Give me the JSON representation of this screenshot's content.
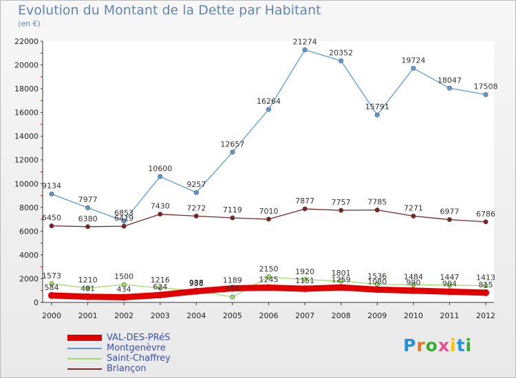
{
  "header": {
    "title": "Evolution du Montant de la Dette par Habitant",
    "subtitle": "(en €)"
  },
  "logo": {
    "letters": [
      "P",
      "r",
      "o",
      "x",
      "i",
      "t",
      "i"
    ],
    "colors": [
      "#2a8fd6",
      "#e2761d",
      "#3aaa35",
      "#e84d93",
      "#f5c400",
      "#2a8fd6",
      "#3aaa35"
    ]
  },
  "chart_data": {
    "type": "line",
    "title": "Evolution du Montant de la Dette par Habitant",
    "subtitle": "(en €)",
    "xlabel": "",
    "ylabel": "",
    "x": [
      2000,
      2001,
      2002,
      2003,
      2004,
      2005,
      2006,
      2007,
      2008,
      2009,
      2010,
      2011,
      2012
    ],
    "ylim": [
      0,
      22000
    ],
    "yticks": [
      0,
      2000,
      4000,
      6000,
      8000,
      10000,
      12000,
      14000,
      16000,
      18000,
      20000,
      22000
    ],
    "grid": false,
    "legend_position": "bottom-left",
    "series": [
      {
        "name": "VAL-DES-PRéS",
        "color": "#e00000",
        "style": "thick",
        "values": [
          584,
          481,
          434,
          624,
          938,
          1189,
          1245,
          1151,
          1259,
          1080,
          990,
          904,
          815
        ]
      },
      {
        "name": "Montgenèvre",
        "color": "#5b9ad5",
        "style": "normal",
        "values": [
          9134,
          7977,
          6853,
          10600,
          9257,
          12657,
          16264,
          21274,
          20352,
          15791,
          19724,
          18047,
          17508
        ]
      },
      {
        "name": "Saint-Chaffrey",
        "color": "#99dd66",
        "style": "normal",
        "values": [
          1573,
          1210,
          1500,
          1216,
          988,
          454,
          2150,
          1920,
          1801,
          1536,
          1484,
          1447,
          1413
        ]
      },
      {
        "name": "Briançon",
        "color": "#7a2323",
        "style": "normal",
        "values": [
          6450,
          6380,
          6419,
          7430,
          7272,
          7119,
          7010,
          7877,
          7757,
          7785,
          7271,
          6977,
          6786
        ]
      }
    ]
  }
}
